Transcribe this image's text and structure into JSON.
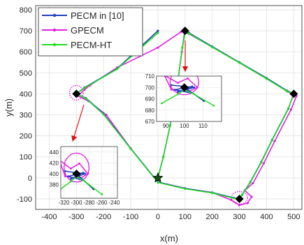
{
  "chart_data": {
    "type": "line",
    "xlabel": "x(m)",
    "ylabel": "y(m)",
    "xlim": [
      -450,
      530
    ],
    "ylim": [
      -150,
      820
    ],
    "xticks": [
      -400,
      -300,
      -200,
      -100,
      0,
      100,
      200,
      300,
      400,
      500
    ],
    "yticks": [
      -100,
      0,
      100,
      200,
      300,
      400,
      500,
      600,
      700,
      800
    ],
    "grid": true,
    "legend_position": "top-left",
    "waypoints": [
      {
        "x": 0,
        "y": 0
      },
      {
        "x": 100,
        "y": 700
      },
      {
        "x": 500,
        "y": 400
      },
      {
        "x": 300,
        "y": -100
      },
      {
        "x": -300,
        "y": 400
      }
    ],
    "start": {
      "x": 0,
      "y": 0
    },
    "series": [
      {
        "name": "PECM in [10]",
        "color": "#1f3fbf",
        "marker": "dot",
        "x": [
          0,
          20,
          45,
          72,
          90,
          100,
          115,
          200,
          300,
          400,
          475,
          500,
          480,
          420,
          380,
          340,
          310,
          300,
          280,
          200,
          100,
          0,
          -100,
          -200,
          -265,
          -300,
          -270,
          -150,
          0
        ],
        "y": [
          0,
          100,
          250,
          450,
          620,
          700,
          690,
          625,
          550,
          475,
          415,
          400,
          330,
          180,
          75,
          -20,
          -80,
          -100,
          -95,
          -70,
          -50,
          -20,
          140,
          305,
          380,
          400,
          430,
          520,
          700
        ]
      },
      {
        "name": "GPECM",
        "color": "#e020e0",
        "marker": "dot",
        "x": [
          0,
          20,
          45,
          72,
          88,
          98,
          115,
          200,
          300,
          400,
          480,
          510,
          490,
          430,
          390,
          350,
          320,
          345,
          330,
          300,
          270,
          200,
          100,
          0,
          -100,
          -190,
          -255,
          -295,
          -270,
          -250,
          -150,
          0,
          85,
          100
        ],
        "y": [
          0,
          100,
          250,
          450,
          600,
          690,
          685,
          622,
          548,
          472,
          410,
          390,
          325,
          175,
          70,
          -25,
          -60,
          -90,
          -120,
          -130,
          -105,
          -70,
          -50,
          -20,
          140,
          300,
          365,
          390,
          420,
          440,
          525,
          620,
          695,
          705
        ],
        "loops": [
          {
            "cx": 300,
            "cy": -95,
            "rx": 30,
            "ry": 30
          },
          {
            "cx": -300,
            "cy": 405,
            "rx": 25,
            "ry": 35
          }
        ]
      },
      {
        "name": "PECM-HT",
        "color": "#22dd22",
        "marker": "dot",
        "x": [
          0,
          20,
          45,
          72,
          90,
          100,
          115,
          200,
          300,
          400,
          475,
          500,
          480,
          420,
          380,
          340,
          310,
          300,
          280,
          200,
          100,
          0,
          -100,
          -200,
          -265,
          -300,
          -270,
          -150,
          0
        ],
        "y": [
          0,
          100,
          250,
          450,
          620,
          690,
          687,
          622,
          548,
          472,
          412,
          400,
          328,
          178,
          72,
          -22,
          -82,
          -100,
          -97,
          -72,
          -52,
          -22,
          138,
          302,
          378,
          400,
          428,
          518,
          690
        ]
      }
    ],
    "insets": [
      {
        "xlim": [
          85,
          120
        ],
        "ylim": [
          670,
          710
        ],
        "xticks": [
          90,
          100,
          110
        ],
        "yticks": [
          670,
          680,
          690,
          700,
          710
        ],
        "center": {
          "x": 100,
          "y": 700
        }
      },
      {
        "xlim": [
          -325,
          -235
        ],
        "ylim": [
          355,
          450
        ],
        "xticks": [
          -320,
          -300,
          -280,
          -260,
          -240
        ],
        "yticks": [
          380,
          400,
          420,
          440
        ],
        "center": {
          "x": -300,
          "y": 400
        }
      }
    ]
  }
}
